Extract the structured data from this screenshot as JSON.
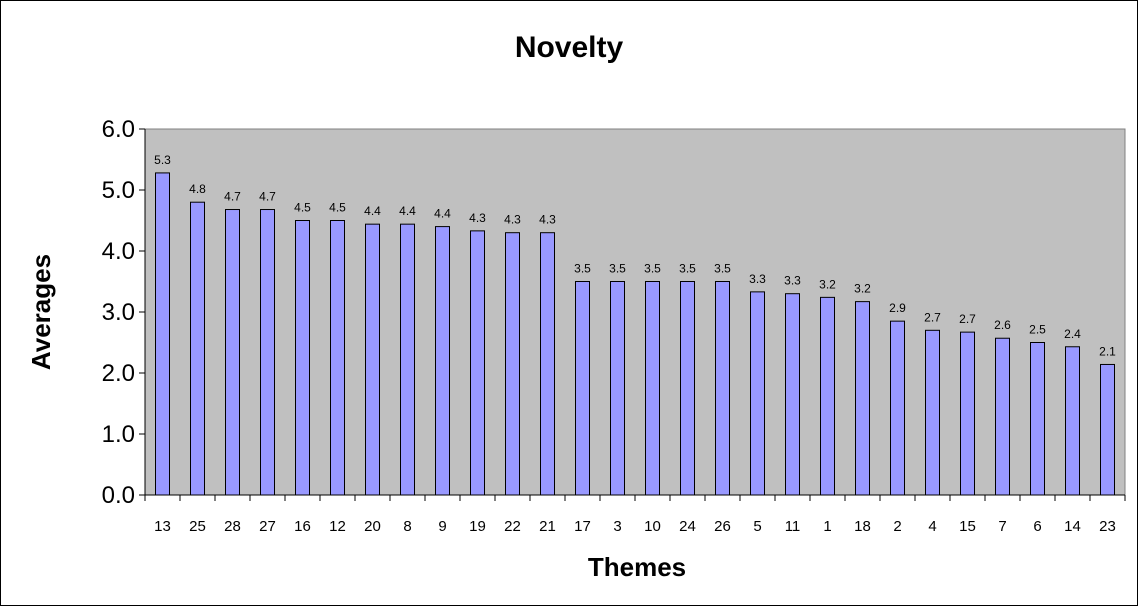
{
  "chart_data": {
    "type": "bar",
    "title": "Novelty",
    "xlabel": "Themes",
    "ylabel": "Averages",
    "ylim": [
      0,
      6
    ],
    "yticks": [
      "0.0",
      "1.0",
      "2.0",
      "3.0",
      "4.0",
      "5.0",
      "6.0"
    ],
    "grid": false,
    "legend": "none",
    "categories": [
      "13",
      "25",
      "28",
      "27",
      "16",
      "12",
      "20",
      "8",
      "9",
      "19",
      "22",
      "21",
      "17",
      "3",
      "10",
      "24",
      "26",
      "5",
      "11",
      "1",
      "18",
      "2",
      "4",
      "15",
      "7",
      "6",
      "14",
      "23"
    ],
    "values": [
      5.28,
      4.8,
      4.68,
      4.68,
      4.5,
      4.5,
      4.44,
      4.44,
      4.4,
      4.33,
      4.3,
      4.3,
      3.5,
      3.5,
      3.5,
      3.5,
      3.5,
      3.33,
      3.3,
      3.24,
      3.17,
      2.85,
      2.7,
      2.67,
      2.57,
      2.5,
      2.43,
      2.14
    ],
    "data_labels": [
      "5.3",
      "4.8",
      "4.7",
      "4.7",
      "4.5",
      "4.5",
      "4.4",
      "4.4",
      "4.4",
      "4.3",
      "4.3",
      "4.3",
      "3.5",
      "3.5",
      "3.5",
      "3.5",
      "3.5",
      "3.3",
      "3.3",
      "3.2",
      "3.2",
      "2.9",
      "2.7",
      "2.7",
      "2.6",
      "2.5",
      "2.4",
      "2.1"
    ],
    "colors": {
      "bar_fill": "#9999ff",
      "bar_stroke": "#000000",
      "plot_background": "#c0c0c0",
      "page_background": "#ffffff"
    }
  }
}
